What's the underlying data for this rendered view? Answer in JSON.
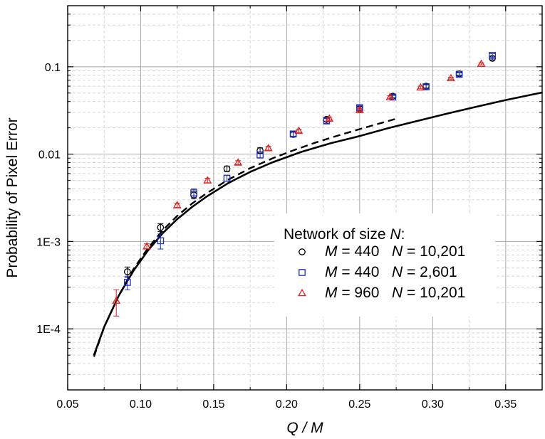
{
  "chart_data": {
    "type": "scatter",
    "xlabel": "Q / M",
    "ylabel": "Probability of Pixel Error",
    "xlim": [
      0.05,
      0.375
    ],
    "ylim": [
      2e-05,
      0.5
    ],
    "yscale": "log",
    "grid": true,
    "x_ticks": [
      0.05,
      0.1,
      0.15,
      0.2,
      0.25,
      0.3,
      0.35
    ],
    "x_tick_labels": [
      "0.05",
      "0.10",
      "0.15",
      "0.20",
      "0.25",
      "0.30",
      "0.35"
    ],
    "y_ticks": [
      0.0001,
      0.001,
      0.01,
      0.1
    ],
    "y_tick_labels": [
      "1E-4",
      "1E-3",
      "0.01",
      "0.1"
    ],
    "legend": {
      "title": "Network of size N:",
      "title_italic_part": "N",
      "position": "lower-right",
      "entries": [
        {
          "series_index": 0,
          "M": "440",
          "N": "10,201"
        },
        {
          "series_index": 1,
          "M": "440",
          "N": "2,601"
        },
        {
          "series_index": 2,
          "M": "960",
          "N": "10,201"
        }
      ]
    },
    "series": [
      {
        "name": "M = 440  N = 10,201",
        "marker": "circle",
        "color": "#000000",
        "points": [
          {
            "x": 0.0909,
            "y": 0.00045,
            "err": 6e-05
          },
          {
            "x": 0.1136,
            "y": 0.00145,
            "err": 0.00015
          },
          {
            "x": 0.1364,
            "y": 0.0034,
            "err": 0.0003
          },
          {
            "x": 0.1591,
            "y": 0.0068,
            "err": 0.0005
          },
          {
            "x": 0.1818,
            "y": 0.011,
            "err": 0.0008
          },
          {
            "x": 0.2045,
            "y": 0.0168,
            "err": 0.001
          },
          {
            "x": 0.2273,
            "y": 0.025,
            "err": 0.0015
          },
          {
            "x": 0.25,
            "y": 0.033,
            "err": 0.0018
          },
          {
            "x": 0.2727,
            "y": 0.046,
            "err": 0.002
          },
          {
            "x": 0.2955,
            "y": 0.06,
            "err": 0.003
          },
          {
            "x": 0.3182,
            "y": 0.083,
            "err": 0.003
          },
          {
            "x": 0.3409,
            "y": 0.125,
            "err": 0.005
          }
        ]
      },
      {
        "name": "M = 440  N = 2,601",
        "marker": "square",
        "color": "#1f2fbf",
        "points": [
          {
            "x": 0.0909,
            "y": 0.00034,
            "err": 6e-05
          },
          {
            "x": 0.1136,
            "y": 0.00102,
            "err": 0.0002
          },
          {
            "x": 0.1364,
            "y": 0.0036,
            "err": 0.0004
          },
          {
            "x": 0.1591,
            "y": 0.0053,
            "err": 0.0004
          },
          {
            "x": 0.1818,
            "y": 0.0098,
            "err": 0.0008
          },
          {
            "x": 0.2045,
            "y": 0.017,
            "err": 0.001
          },
          {
            "x": 0.2273,
            "y": 0.024,
            "err": 0.0015
          },
          {
            "x": 0.25,
            "y": 0.034,
            "err": 0.0018
          },
          {
            "x": 0.2727,
            "y": 0.045,
            "err": 0.002
          },
          {
            "x": 0.2955,
            "y": 0.059,
            "err": 0.003
          },
          {
            "x": 0.3182,
            "y": 0.082,
            "err": 0.003
          },
          {
            "x": 0.3409,
            "y": 0.135,
            "err": 0.006
          }
        ]
      },
      {
        "name": "M = 960  N = 10,201",
        "marker": "triangle",
        "color": "#e02020",
        "points": [
          {
            "x": 0.0833,
            "y": 0.00021,
            "err": 7e-05
          },
          {
            "x": 0.1042,
            "y": 0.00088,
            "err": 6e-05
          },
          {
            "x": 0.125,
            "y": 0.0026,
            "err": 0.00015
          },
          {
            "x": 0.1458,
            "y": 0.005,
            "err": 0.0003
          },
          {
            "x": 0.1667,
            "y": 0.008,
            "err": 0.0004
          },
          {
            "x": 0.1875,
            "y": 0.0117,
            "err": 0.0006
          },
          {
            "x": 0.2083,
            "y": 0.0185,
            "err": 0.0008
          },
          {
            "x": 0.2292,
            "y": 0.0255,
            "err": 0.001
          },
          {
            "x": 0.25,
            "y": 0.032,
            "err": 0.0012
          },
          {
            "x": 0.2708,
            "y": 0.045,
            "err": 0.0015
          },
          {
            "x": 0.2917,
            "y": 0.058,
            "err": 0.002
          },
          {
            "x": 0.3125,
            "y": 0.074,
            "err": 0.002
          },
          {
            "x": 0.3333,
            "y": 0.108,
            "err": 0.003
          }
        ]
      }
    ],
    "curves": [
      {
        "name": "theory",
        "style": "solid",
        "color": "#000000",
        "x": [
          0.068,
          0.075,
          0.085,
          0.095,
          0.105,
          0.115,
          0.125,
          0.135,
          0.145,
          0.16,
          0.175,
          0.19,
          0.21,
          0.23,
          0.25,
          0.27,
          0.29,
          0.31,
          0.33,
          0.35,
          0.375
        ],
        "y": [
          5e-05,
          0.000105,
          0.00024,
          0.00046,
          0.00079,
          0.00124,
          0.0018,
          0.00247,
          0.00325,
          0.00466,
          0.00626,
          0.00802,
          0.0106,
          0.0133,
          0.0161,
          0.0199,
          0.0241,
          0.0291,
          0.0349,
          0.0416,
          0.0507
        ]
      },
      {
        "name": "approximation",
        "style": "dashed",
        "color": "#000000",
        "x": [
          0.068,
          0.075,
          0.085,
          0.095,
          0.105,
          0.115,
          0.125,
          0.135,
          0.145,
          0.16,
          0.175,
          0.19,
          0.205,
          0.22,
          0.235,
          0.25,
          0.265,
          0.275
        ],
        "y": [
          4.8e-05,
          0.000105,
          0.00024,
          0.00048,
          0.00084,
          0.00134,
          0.00196,
          0.0027,
          0.00355,
          0.0051,
          0.0069,
          0.0089,
          0.0111,
          0.0136,
          0.0163,
          0.0193,
          0.0228,
          0.0254
        ]
      }
    ]
  }
}
